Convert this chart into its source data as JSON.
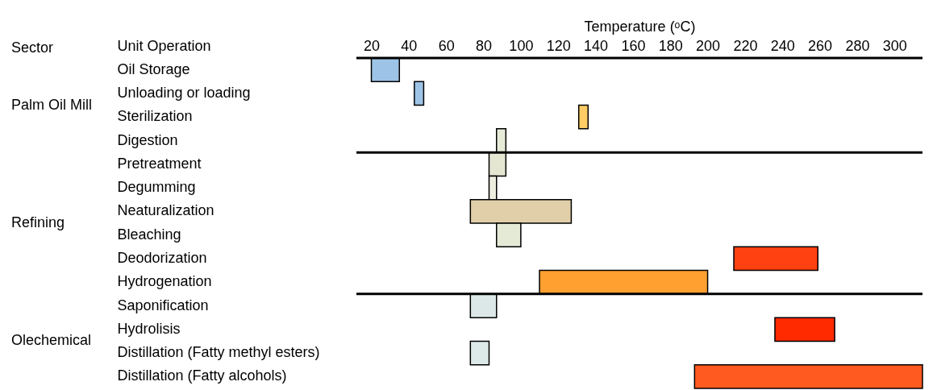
{
  "chart_data": {
    "type": "bar",
    "orientation": "horizontal",
    "xlabel": "Temperature (ᵒC)",
    "ylabel": "Unit Operation",
    "categories": [
      "Oil Storage",
      "Unloading or loading",
      "Sterilization",
      "Digestion",
      "Pretreatment",
      "Degumming",
      "Neaturalization",
      "Bleaching",
      "Deodorization",
      "Hydrogenation",
      "Saponification",
      "Hydrolisis",
      "Distillation (Fatty methyl esters)",
      "Distillation (Fatty alcohols)"
    ],
    "base": [
      20,
      43,
      131,
      87,
      83,
      83,
      73,
      87,
      214,
      110,
      73,
      236,
      73,
      193
    ],
    "values": [
      15,
      5,
      5,
      5,
      9,
      4,
      54,
      13,
      45,
      90,
      14,
      32,
      10,
      122
    ],
    "colors": [
      "#9dc3e6",
      "#9dc3e6",
      "#ffcc66",
      "#e6ebd8",
      "#e4e6d2",
      "#eeeee0",
      "#e0cfa8",
      "#e4ead6",
      "#ff4010",
      "#ffa030",
      "#dce8e8",
      "#ff2a00",
      "#dde8e8",
      "#ff5a20"
    ],
    "xlim": [
      12,
      315
    ],
    "xticks": [
      20,
      40,
      60,
      80,
      100,
      120,
      140,
      160,
      180,
      200,
      220,
      240,
      260,
      280,
      300
    ],
    "annotations": [
      "Sector",
      "Palm Oil Mill",
      "Refining",
      "Olechemical"
    ]
  }
}
